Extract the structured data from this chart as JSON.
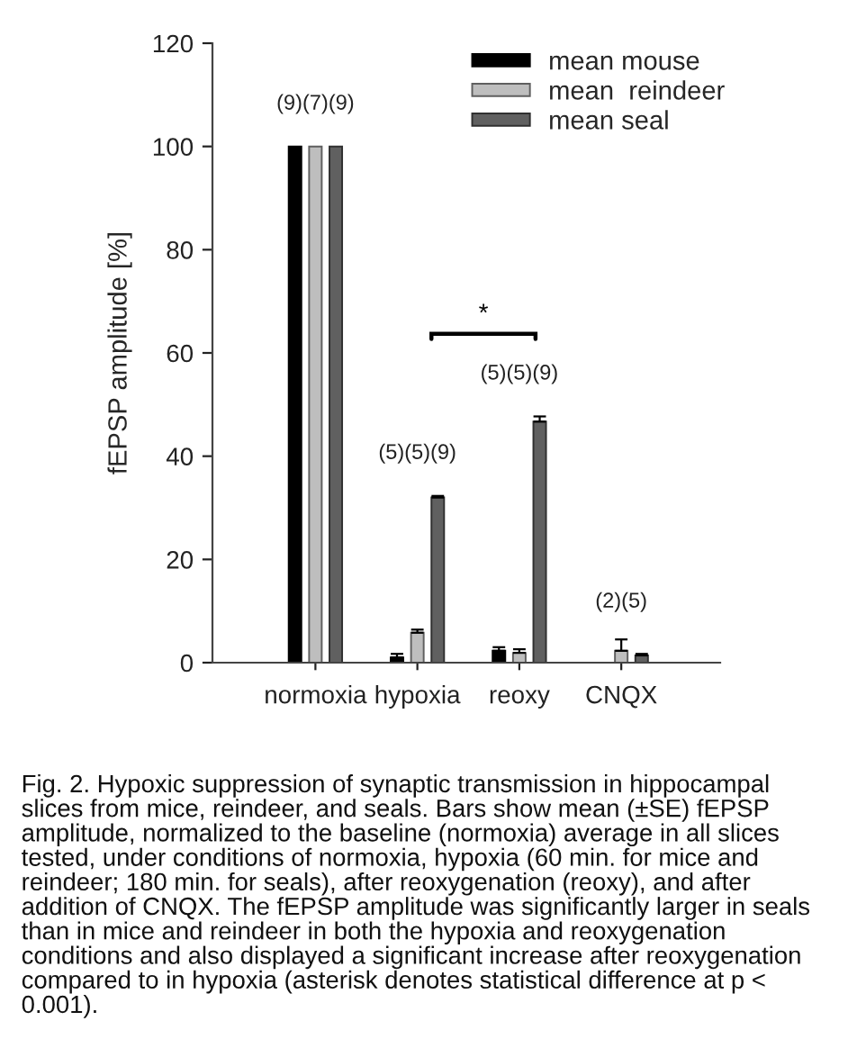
{
  "chart_data": {
    "type": "bar",
    "categories": [
      "normoxia",
      "hypoxia",
      "reoxy",
      "CNQX"
    ],
    "series": [
      {
        "name": "mean mouse",
        "color": "#000000",
        "values": [
          100,
          1,
          2.3,
          null
        ],
        "errors": [
          null,
          [
            1,
            1.7
          ],
          [
            2.3,
            3
          ],
          null
        ]
      },
      {
        "name": "mean  reindeer",
        "color": "#bebebe",
        "values": [
          100,
          5.8,
          1.9,
          2.3
        ],
        "errors": [
          null,
          [
            5.8,
            6.4
          ],
          [
            1.9,
            2.6
          ],
          [
            2.3,
            4.5
          ]
        ]
      },
      {
        "name": "mean seal",
        "color": "#606060",
        "values": [
          100,
          32,
          46.7,
          1.4
        ],
        "errors": [
          null,
          [
            32,
            32.3
          ],
          [
            46.7,
            47.7
          ],
          [
            1.4,
            1.7
          ]
        ]
      }
    ],
    "ylabel": "fEPSP amplitude [%]",
    "ylim": [
      0,
      120
    ],
    "yticks": [
      0,
      20,
      40,
      60,
      80,
      100,
      120
    ],
    "legend": "top right",
    "annotations": [
      "(9)(7)(9)",
      "(5)(5)(9)",
      "(5)(5)(9)",
      "(2)(5)",
      "*",
      "Fig. 2. Hypoxic suppression of synaptic transmission in hippocampal slices from mice, reindeer, and seals. Bars show mean (±SE) fEPSP amplitude, normalized to the baseline (normoxia) average in all slices tested, under conditions of normoxia, hypoxia (60 min. for mice and reindeer; 180 min. for seals), after reoxygenation (reoxy), and after addition of CNQX. The fEPSP amplitude was significantly larger in seals than in mice and reindeer in both the hypoxia and reoxygenation conditions and also displayed a significant increase after reoxygenation compared to in hypoxia (asterisk denotes statistical difference at p < 0.001)."
    ]
  }
}
